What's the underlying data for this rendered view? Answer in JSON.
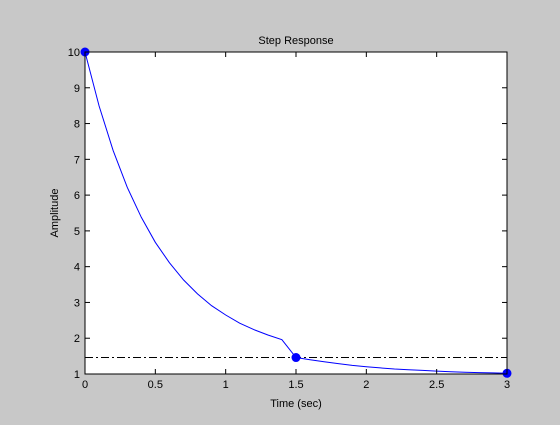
{
  "chart_data": {
    "type": "line",
    "title": "Step Response",
    "xlabel": "Time (sec)",
    "ylabel": "Amplitude",
    "xlim": [
      0,
      3
    ],
    "ylim": [
      1,
      10
    ],
    "x_ticks": [
      "0",
      "0.5",
      "1",
      "1.5",
      "2",
      "2.5",
      "3"
    ],
    "y_ticks": [
      "1",
      "2",
      "3",
      "4",
      "5",
      "6",
      "7",
      "8",
      "9",
      "10"
    ],
    "grid": false,
    "series": [
      {
        "x": [
          0,
          0.1,
          0.2,
          0.3,
          0.4,
          0.5,
          0.6,
          0.7,
          0.8,
          0.9,
          1.0,
          1.1,
          1.2,
          1.3,
          1.4,
          1.5,
          1.6,
          1.7,
          1.8,
          1.9,
          2.0,
          2.1,
          2.2,
          2.3,
          2.4,
          2.5,
          2.6,
          2.7,
          2.8,
          2.9,
          3.0
        ],
        "y": [
          10,
          8.49,
          7.25,
          6.22,
          5.38,
          4.68,
          4.11,
          3.63,
          3.24,
          2.91,
          2.65,
          2.42,
          2.24,
          2.09,
          1.96,
          1.46,
          1.4,
          1.34,
          1.29,
          1.24,
          1.2,
          1.17,
          1.14,
          1.12,
          1.1,
          1.08,
          1.065,
          1.05,
          1.04,
          1.03,
          1.02
        ],
        "color": "#0000ff"
      }
    ],
    "markers": [
      {
        "x": 0,
        "y": 10
      },
      {
        "x": 1.5,
        "y": 1.46
      },
      {
        "x": 3.0,
        "y": 1.02
      }
    ],
    "reference_lines": [
      {
        "orientation": "horizontal",
        "y": 1.46,
        "style": "dash-dot",
        "color": "#000000"
      },
      {
        "orientation": "vertical",
        "x": 0,
        "style": "dash-dot",
        "color": "#000000"
      }
    ]
  }
}
